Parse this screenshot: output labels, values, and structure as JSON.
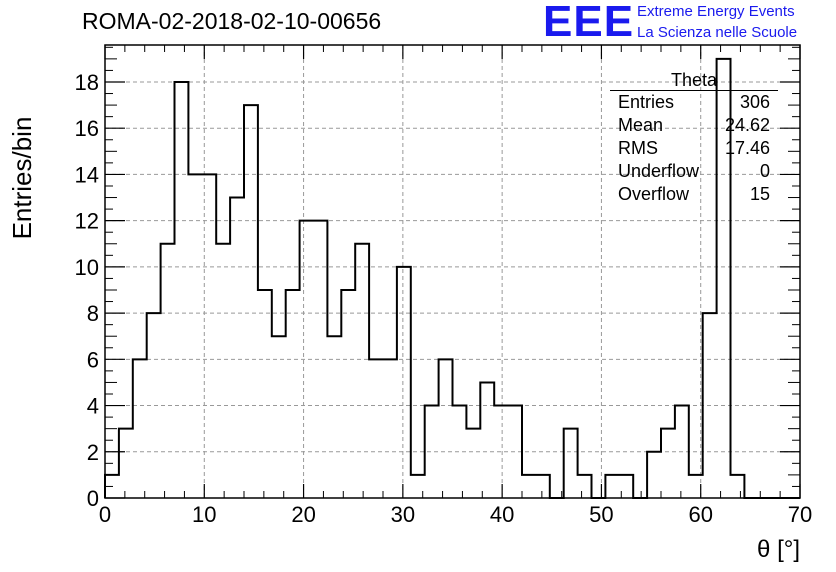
{
  "header": {
    "title": "ROMA-02-2018-02-10-00656",
    "logo_letters": "EEE",
    "logo_line1": "Extreme Energy Events",
    "logo_line2": "La Scienza nelle Scuole"
  },
  "stats": {
    "title": "Theta",
    "rows": [
      {
        "label": "Entries",
        "value": "306"
      },
      {
        "label": "Mean",
        "value": "24.62"
      },
      {
        "label": "RMS",
        "value": "17.46"
      },
      {
        "label": "Underflow",
        "value": "0"
      },
      {
        "label": "Overflow",
        "value": "15"
      }
    ]
  },
  "colors": {
    "logo": "#1a1aee",
    "line": "#000000",
    "grid": "#999999"
  },
  "chart_data": {
    "type": "histogram",
    "xlabel": "θ [°]",
    "ylabel": "Entries/bin",
    "xlim": [
      0,
      70
    ],
    "ylim": [
      0,
      19.6
    ],
    "xticks": [
      0,
      10,
      20,
      30,
      40,
      50,
      60,
      70
    ],
    "yticks": [
      0,
      2,
      4,
      6,
      8,
      10,
      12,
      14,
      16,
      18
    ],
    "grid": true,
    "bin_width": 1.4,
    "values": [
      1,
      3,
      6,
      8,
      11,
      18,
      14,
      14,
      11,
      13,
      17,
      9,
      7,
      9,
      12,
      12,
      7,
      9,
      11,
      6,
      6,
      10,
      1,
      4,
      6,
      4,
      3,
      5,
      4,
      4,
      1,
      1,
      0,
      3,
      1,
      0,
      1,
      1,
      0,
      2,
      3,
      4,
      1,
      8,
      19,
      1,
      0,
      0,
      0,
      0
    ]
  }
}
